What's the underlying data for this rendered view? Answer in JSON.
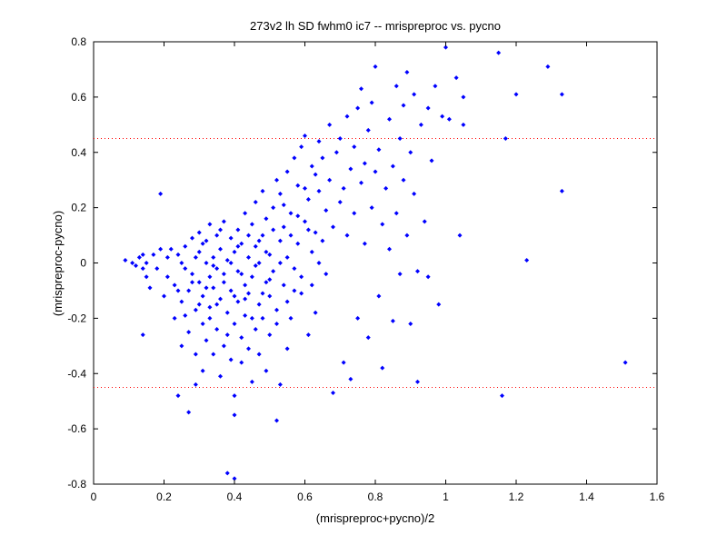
{
  "chart_data": {
    "type": "scatter",
    "title": "273v2 lh SD fwhm0 ic7 -- mrispreproc vs. pycno",
    "xlabel": "(mrispreproc+pycno)/2",
    "ylabel": "(mrispreproc-pycno)",
    "xlim": [
      0,
      1.6
    ],
    "ylim": [
      -0.8,
      0.8
    ],
    "xticks": [
      0,
      0.2,
      0.4,
      0.6,
      0.8,
      1,
      1.2,
      1.4,
      1.6
    ],
    "yticks": [
      -0.8,
      -0.6,
      -0.4,
      -0.2,
      0,
      0.2,
      0.4,
      0.6,
      0.8
    ],
    "xtick_labels": [
      "0",
      "0.2",
      "0.4",
      "0.6",
      "0.8",
      "1",
      "1.2",
      "1.4",
      "1.6"
    ],
    "ytick_labels": [
      "-0.8",
      "-0.6",
      "-0.4",
      "-0.2",
      "0",
      "0.2",
      "0.4",
      "0.6",
      "0.8"
    ],
    "grid": false,
    "marker_color": "#0000ff",
    "reference_line_color": "#ff0000",
    "reference_lines": [
      0.45,
      -0.45
    ],
    "series": [
      {
        "points": [
          [
            0.09,
            0.01
          ],
          [
            0.11,
            0.0
          ],
          [
            0.12,
            -0.01
          ],
          [
            0.13,
            0.02
          ],
          [
            0.14,
            -0.02
          ],
          [
            0.14,
            0.03
          ],
          [
            0.15,
            -0.05
          ],
          [
            0.15,
            0.0
          ],
          [
            0.16,
            -0.09
          ],
          [
            0.17,
            0.03
          ],
          [
            0.18,
            -0.02
          ],
          [
            0.19,
            0.05
          ],
          [
            0.19,
            0.25
          ],
          [
            0.14,
            -0.26
          ],
          [
            0.2,
            -0.12
          ],
          [
            0.21,
            -0.05
          ],
          [
            0.21,
            0.02
          ],
          [
            0.22,
            0.05
          ],
          [
            0.23,
            -0.2
          ],
          [
            0.23,
            -0.08
          ],
          [
            0.24,
            -0.48
          ],
          [
            0.24,
            0.03
          ],
          [
            0.25,
            -0.3
          ],
          [
            0.25,
            -0.14
          ],
          [
            0.26,
            0.06
          ],
          [
            0.26,
            -0.02
          ],
          [
            0.27,
            -0.54
          ],
          [
            0.27,
            -0.25
          ],
          [
            0.27,
            -0.1
          ],
          [
            0.28,
            0.09
          ],
          [
            0.28,
            -0.04
          ],
          [
            0.29,
            -0.44
          ],
          [
            0.29,
            -0.33
          ],
          [
            0.29,
            -0.17
          ],
          [
            0.3,
            0.04
          ],
          [
            0.3,
            -0.07
          ],
          [
            0.3,
            0.11
          ],
          [
            0.31,
            -0.39
          ],
          [
            0.31,
            -0.22
          ],
          [
            0.31,
            -0.12
          ],
          [
            0.32,
            0.0
          ],
          [
            0.32,
            0.08
          ],
          [
            0.32,
            -0.28
          ],
          [
            0.33,
            -0.05
          ],
          [
            0.33,
            0.14
          ],
          [
            0.33,
            -0.16
          ],
          [
            0.34,
            -0.33
          ],
          [
            0.34,
            0.02
          ],
          [
            0.34,
            -0.09
          ],
          [
            0.35,
            0.1
          ],
          [
            0.35,
            -0.24
          ],
          [
            0.35,
            -0.02
          ],
          [
            0.36,
            -0.41
          ],
          [
            0.36,
            -0.13
          ],
          [
            0.36,
            0.05
          ],
          [
            0.37,
            -0.3
          ],
          [
            0.37,
            0.15
          ],
          [
            0.37,
            -0.07
          ],
          [
            0.38,
            -0.18
          ],
          [
            0.38,
            0.01
          ],
          [
            0.38,
            -0.76
          ],
          [
            0.39,
            -0.35
          ],
          [
            0.39,
            0.09
          ],
          [
            0.39,
            -0.1
          ],
          [
            0.4,
            -0.55
          ],
          [
            0.4,
            -0.78
          ],
          [
            0.4,
            -0.48
          ],
          [
            0.4,
            -0.22
          ],
          [
            0.4,
            0.04
          ],
          [
            0.41,
            0.12
          ],
          [
            0.41,
            -0.14
          ],
          [
            0.41,
            -0.03
          ],
          [
            0.42,
            -0.27
          ],
          [
            0.42,
            0.07
          ],
          [
            0.42,
            -0.36
          ],
          [
            0.43,
            -0.08
          ],
          [
            0.43,
            0.18
          ],
          [
            0.43,
            -0.19
          ],
          [
            0.44,
            0.02
          ],
          [
            0.44,
            -0.31
          ],
          [
            0.44,
            -0.11
          ],
          [
            0.45,
            0.14
          ],
          [
            0.45,
            -0.43
          ],
          [
            0.45,
            -0.05
          ],
          [
            0.46,
            0.22
          ],
          [
            0.46,
            -0.24
          ],
          [
            0.46,
            0.06
          ],
          [
            0.47,
            -0.15
          ],
          [
            0.47,
            0.0
          ],
          [
            0.47,
            -0.33
          ],
          [
            0.48,
            0.1
          ],
          [
            0.48,
            -0.2
          ],
          [
            0.48,
            0.26
          ],
          [
            0.49,
            -0.07
          ],
          [
            0.49,
            -0.39
          ],
          [
            0.49,
            0.16
          ],
          [
            0.5,
            -0.12
          ],
          [
            0.5,
            0.03
          ],
          [
            0.5,
            -0.26
          ],
          [
            0.51,
            0.2
          ],
          [
            0.51,
            -0.03
          ],
          [
            0.52,
            -0.57
          ],
          [
            0.52,
            0.3
          ],
          [
            0.52,
            -0.17
          ],
          [
            0.53,
            0.08
          ],
          [
            0.53,
            -0.44
          ],
          [
            0.53,
            0.25
          ],
          [
            0.54,
            -0.08
          ],
          [
            0.54,
            0.13
          ],
          [
            0.55,
            -0.31
          ],
          [
            0.55,
            0.33
          ],
          [
            0.55,
            0.02
          ],
          [
            0.56,
            -0.2
          ],
          [
            0.56,
            0.18
          ],
          [
            0.57,
            0.38
          ],
          [
            0.57,
            -0.1
          ],
          [
            0.58,
            0.07
          ],
          [
            0.58,
            0.28
          ],
          [
            0.59,
            -0.05
          ],
          [
            0.59,
            0.42
          ],
          [
            0.6,
            0.46
          ],
          [
            0.6,
            0.15
          ],
          [
            0.61,
            -0.26
          ],
          [
            0.61,
            0.23
          ],
          [
            0.62,
            0.04
          ],
          [
            0.62,
            0.35
          ],
          [
            0.63,
            0.11
          ],
          [
            0.63,
            -0.18
          ],
          [
            0.64,
            0.44
          ],
          [
            0.64,
            0.26
          ],
          [
            0.65,
            0.08
          ],
          [
            0.65,
            0.38
          ],
          [
            0.66,
            0.19
          ],
          [
            0.66,
            -0.04
          ],
          [
            0.67,
            0.3
          ],
          [
            0.67,
            0.5
          ],
          [
            0.68,
            -0.47
          ],
          [
            0.68,
            0.13
          ],
          [
            0.69,
            0.4
          ],
          [
            0.7,
            0.22
          ],
          [
            0.7,
            0.45
          ],
          [
            0.71,
            0.27
          ],
          [
            0.71,
            -0.36
          ],
          [
            0.72,
            0.53
          ],
          [
            0.72,
            0.1
          ],
          [
            0.73,
            0.34
          ],
          [
            0.73,
            -0.42
          ],
          [
            0.74,
            0.18
          ],
          [
            0.74,
            0.42
          ],
          [
            0.75,
            0.56
          ],
          [
            0.75,
            -0.2
          ],
          [
            0.76,
            0.29
          ],
          [
            0.76,
            0.63
          ],
          [
            0.77,
            0.36
          ],
          [
            0.77,
            0.07
          ],
          [
            0.78,
            0.48
          ],
          [
            0.78,
            -0.27
          ],
          [
            0.79,
            0.2
          ],
          [
            0.79,
            0.58
          ],
          [
            0.8,
            0.71
          ],
          [
            0.8,
            0.33
          ],
          [
            0.81,
            -0.12
          ],
          [
            0.81,
            0.41
          ],
          [
            0.82,
            0.14
          ],
          [
            0.82,
            -0.38
          ],
          [
            0.83,
            0.27
          ],
          [
            0.84,
            0.52
          ],
          [
            0.84,
            0.05
          ],
          [
            0.85,
            0.35
          ],
          [
            0.85,
            -0.21
          ],
          [
            0.86,
            0.64
          ],
          [
            0.86,
            0.18
          ],
          [
            0.87,
            0.45
          ],
          [
            0.87,
            -0.04
          ],
          [
            0.88,
            0.3
          ],
          [
            0.88,
            0.57
          ],
          [
            0.89,
            0.69
          ],
          [
            0.89,
            0.1
          ],
          [
            0.9,
            0.4
          ],
          [
            0.9,
            -0.22
          ],
          [
            0.91,
            0.61
          ],
          [
            0.91,
            0.25
          ],
          [
            0.92,
            -0.43
          ],
          [
            0.92,
            -0.03
          ],
          [
            0.93,
            0.5
          ],
          [
            0.94,
            0.15
          ],
          [
            0.95,
            0.56
          ],
          [
            0.95,
            -0.05
          ],
          [
            0.96,
            0.37
          ],
          [
            0.97,
            0.64
          ],
          [
            0.98,
            -0.15
          ],
          [
            0.99,
            0.53
          ],
          [
            1.0,
            0.78
          ],
          [
            1.01,
            0.52
          ],
          [
            1.03,
            0.67
          ],
          [
            1.04,
            0.1
          ],
          [
            1.05,
            0.6
          ],
          [
            1.05,
            0.5
          ],
          [
            1.15,
            0.76
          ],
          [
            1.16,
            -0.48
          ],
          [
            1.17,
            0.45
          ],
          [
            1.2,
            0.61
          ],
          [
            1.23,
            0.01
          ],
          [
            1.29,
            0.71
          ],
          [
            1.33,
            0.61
          ],
          [
            1.33,
            0.26
          ],
          [
            1.51,
            -0.36
          ],
          [
            0.24,
            -0.1
          ],
          [
            0.25,
            0.0
          ],
          [
            0.26,
            -0.19
          ],
          [
            0.28,
            -0.07
          ],
          [
            0.29,
            0.02
          ],
          [
            0.3,
            -0.15
          ],
          [
            0.31,
            0.07
          ],
          [
            0.32,
            -0.09
          ],
          [
            0.33,
            -0.2
          ],
          [
            0.34,
            -0.01
          ],
          [
            0.35,
            -0.15
          ],
          [
            0.36,
            0.12
          ],
          [
            0.37,
            -0.04
          ],
          [
            0.38,
            -0.26
          ],
          [
            0.39,
            0.0
          ],
          [
            0.4,
            -0.12
          ],
          [
            0.41,
            0.06
          ],
          [
            0.42,
            -0.04
          ],
          [
            0.43,
            -0.13
          ],
          [
            0.44,
            0.1
          ],
          [
            0.45,
            -0.2
          ],
          [
            0.46,
            -0.01
          ],
          [
            0.47,
            0.08
          ],
          [
            0.48,
            -0.11
          ],
          [
            0.49,
            0.04
          ],
          [
            0.5,
            -0.06
          ],
          [
            0.51,
            0.12
          ],
          [
            0.52,
            -0.22
          ],
          [
            0.53,
            0.0
          ],
          [
            0.54,
            0.21
          ],
          [
            0.55,
            -0.14
          ],
          [
            0.56,
            0.1
          ],
          [
            0.57,
            -0.02
          ],
          [
            0.58,
            0.17
          ],
          [
            0.59,
            -0.11
          ],
          [
            0.6,
            0.27
          ],
          [
            0.61,
            0.12
          ],
          [
            0.62,
            -0.08
          ],
          [
            0.63,
            0.32
          ],
          [
            0.64,
            0.0
          ]
        ]
      }
    ]
  }
}
